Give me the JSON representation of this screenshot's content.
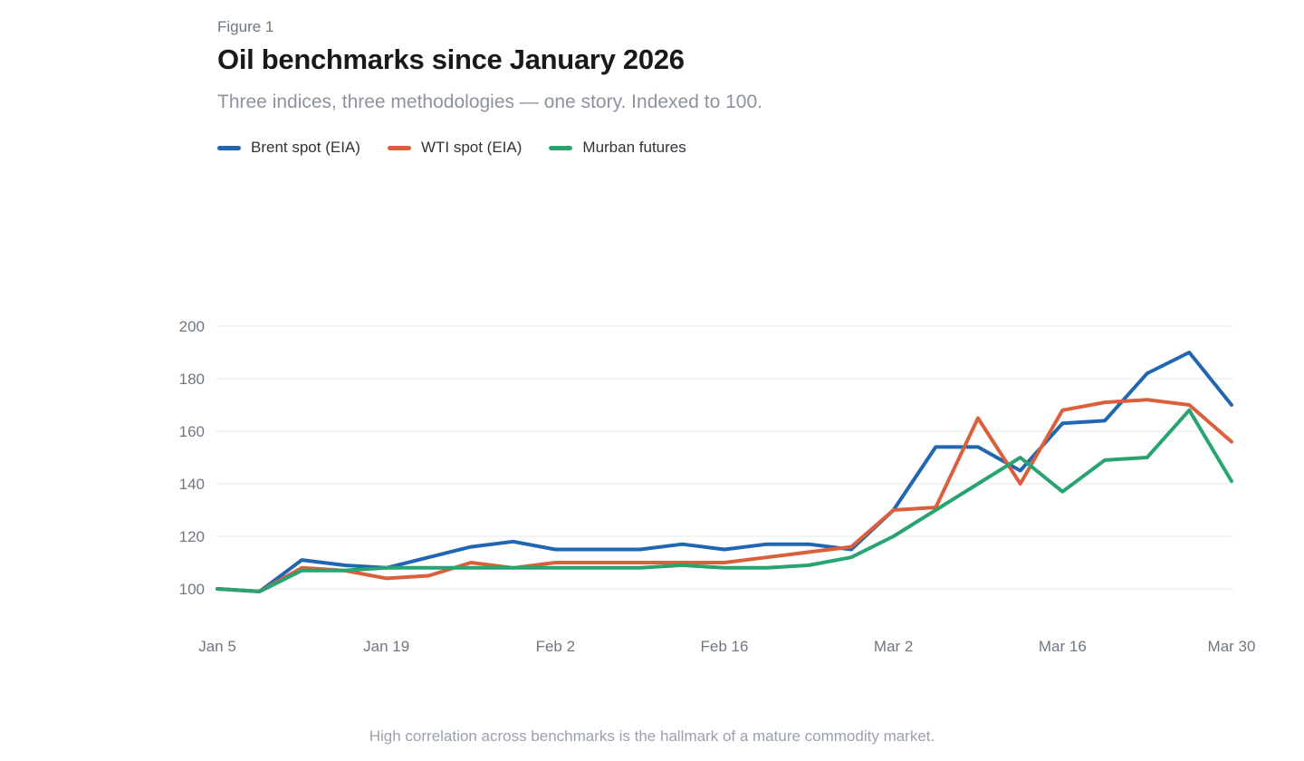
{
  "figure": {
    "eyebrow": "Figure 1",
    "title": "Oil benchmarks since January 2026",
    "subtitle": "Three indices, three methodologies — one story. Indexed to 100.",
    "footnote": "High correlation across benchmarks is the hallmark of a mature commodity market."
  },
  "colors": {
    "brent": "#2166b0",
    "wti": "#dc5f3b",
    "murban": "#27a470",
    "grid": "#e9e9ec",
    "tick_label": "#6f7781"
  },
  "chart_data": {
    "type": "line",
    "title": "Oil benchmarks since January 2026",
    "subtitle": "Three indices, three methodologies — one story. Indexed to 100.",
    "xlabel": "",
    "ylabel": "",
    "index_base": 100,
    "n_points": 25,
    "x_tick_labels": [
      "Jan 5",
      "Jan 19",
      "Feb 2",
      "Feb 16",
      "Mar 2",
      "Mar 16",
      "Mar 30"
    ],
    "x_tick_indices": [
      0,
      4,
      8,
      12,
      16,
      20,
      24
    ],
    "y_ticks": [
      100,
      120,
      140,
      160,
      180,
      200
    ],
    "ylim": [
      95,
      205
    ],
    "grid": "horizontal",
    "legend_position": "top-left",
    "series": [
      {
        "name": "Brent spot (EIA)",
        "key": "brent",
        "color": "#2166b0",
        "values": [
          100,
          99,
          111,
          109,
          108,
          112,
          116,
          118,
          115,
          115,
          115,
          117,
          115,
          117,
          117,
          115,
          130,
          154,
          154,
          145,
          163,
          164,
          182,
          190,
          170
        ]
      },
      {
        "name": "WTI spot (EIA)",
        "key": "wti",
        "color": "#dc5f3b",
        "values": [
          100,
          99,
          108,
          107,
          104,
          105,
          110,
          108,
          110,
          110,
          110,
          110,
          110,
          112,
          114,
          116,
          130,
          131,
          165,
          140,
          168,
          171,
          172,
          170,
          156
        ]
      },
      {
        "name": "Murban futures",
        "key": "murban",
        "color": "#27a470",
        "values": [
          100,
          99,
          107,
          107,
          108,
          108,
          108,
          108,
          108,
          108,
          108,
          109,
          108,
          108,
          109,
          112,
          120,
          130,
          140,
          150,
          137,
          149,
          150,
          168,
          141
        ]
      }
    ]
  }
}
